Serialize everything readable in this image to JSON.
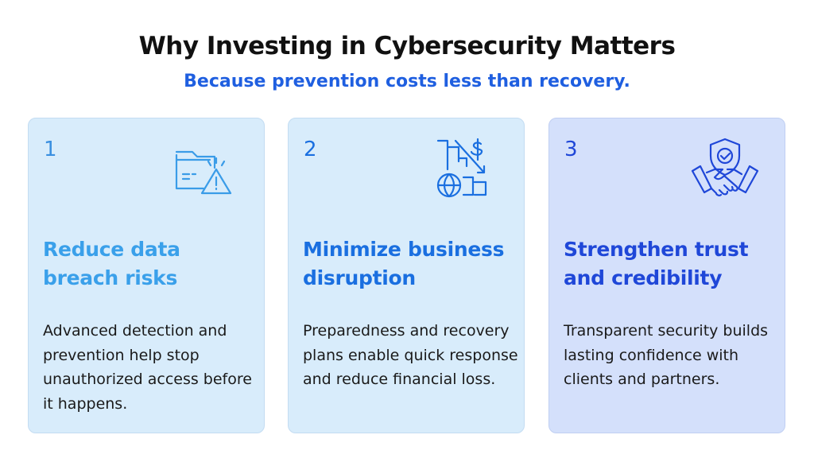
{
  "header": {
    "title": "Why Investing in Cybersecurity Matters",
    "subtitle": "Because prevention costs less than recovery."
  },
  "cards": [
    {
      "number": "1",
      "heading": "Reduce data breach risks",
      "body": "Advanced detection and prevention help stop unauthorized access before it happens."
    },
    {
      "number": "2",
      "heading": "Minimize business disruption",
      "body": "Preparedness and recovery plans enable quick response and reduce financial loss."
    },
    {
      "number": "3",
      "heading": "Strengthen trust and credibility",
      "body": "Transparent security builds lasting confidence with clients and partners."
    }
  ]
}
